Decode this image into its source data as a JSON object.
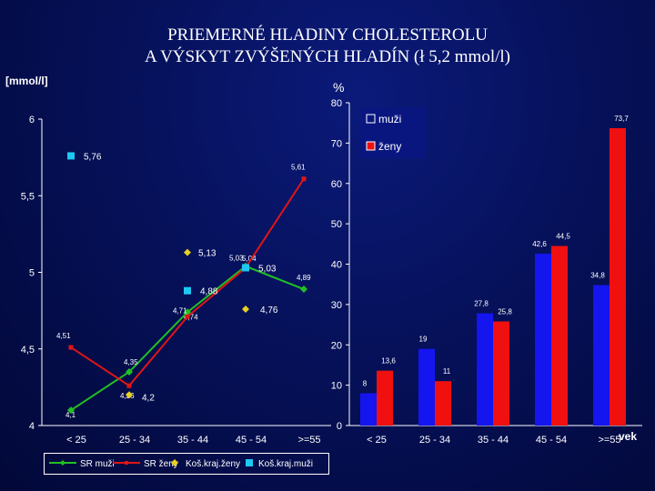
{
  "title": {
    "line1": "PRIEMERNÉ HLADINY CHOLESTEROLU",
    "line2": "A VÝSKYT ZVÝŠENÝCH HLADÍN (ł 5,2 mmol/l)"
  },
  "colors": {
    "sr_muzi": "#22c022",
    "sr_zeny": "#e01515",
    "kos_zeny": "#e8d020",
    "kos_muzi": "#1ec8f0",
    "bar_muzi": "#1515f0",
    "bar_zeny": "#f01010"
  },
  "chart_data": [
    {
      "type": "line",
      "ylabel": "[mmol/l]",
      "ylim": [
        4,
        6
      ],
      "yticks": [
        "4",
        "4,5",
        "5",
        "5,5",
        "6"
      ],
      "categories": [
        "< 25",
        "25 - 34",
        "35 - 44",
        "45 - 54",
        ">=55"
      ],
      "series": [
        {
          "name": "SR muži",
          "values": [
            4.1,
            4.35,
            4.74,
            5.04,
            4.89
          ],
          "labels": [
            "4,1",
            "4,35",
            "4,74",
            "5,04",
            "4,89"
          ]
        },
        {
          "name": "SR ženy",
          "values": [
            4.51,
            4.26,
            4.71,
            5.03,
            5.61
          ],
          "labels": [
            "4,51",
            "4,26",
            "4,71",
            "5,03",
            "5,61"
          ]
        },
        {
          "name": "Koš.kraj.ženy",
          "values": [
            null,
            4.2,
            5.13,
            4.76,
            null
          ],
          "labels": [
            "",
            "4,2",
            "5,13",
            "4,76",
            ""
          ]
        },
        {
          "name": "Koš.kraj.muži",
          "values": [
            5.76,
            null,
            4.88,
            5.03,
            null
          ],
          "labels": [
            "5,76",
            "",
            "4,88",
            "5,03",
            ""
          ]
        }
      ]
    },
    {
      "type": "bar",
      "ylabel": "%",
      "xlabel": "vek",
      "ylim": [
        0,
        80
      ],
      "yticks": [
        "0",
        "10",
        "20",
        "30",
        "40",
        "50",
        "60",
        "70",
        "80"
      ],
      "categories": [
        "< 25",
        "25 - 34",
        "35 - 44",
        "45 - 54",
        ">=55"
      ],
      "legend": [
        "muži",
        "ženy"
      ],
      "series": [
        {
          "name": "muži",
          "values": [
            8,
            19,
            27.8,
            42.6,
            34.8
          ],
          "labels": [
            "8",
            "19",
            "27,8",
            "42,6",
            "34,8"
          ]
        },
        {
          "name": "ženy",
          "values": [
            13.6,
            11,
            25.8,
            44.5,
            73.7
          ],
          "labels": [
            "13,6",
            "11",
            "25,8",
            "44,5",
            "73,7"
          ]
        }
      ]
    }
  ]
}
